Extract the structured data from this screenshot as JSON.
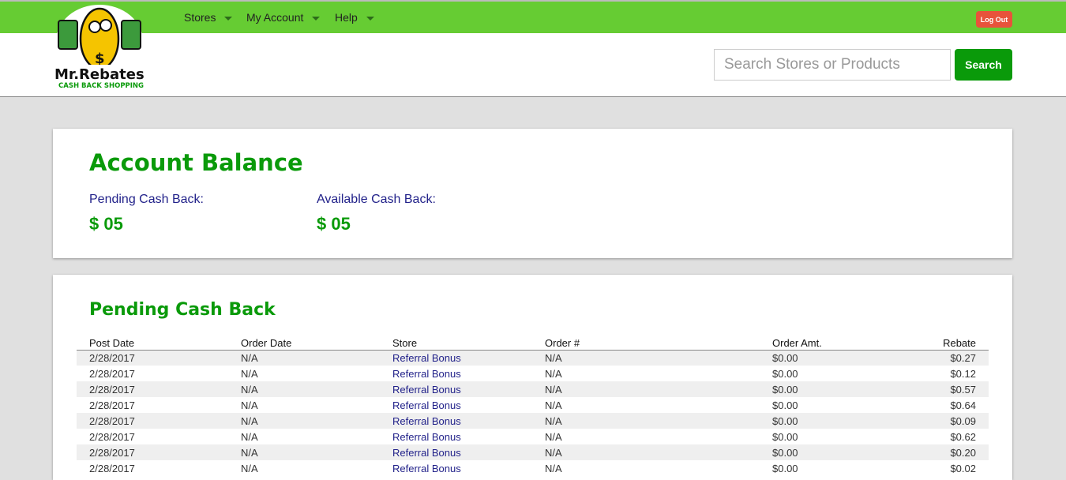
{
  "brand": {
    "name": "Mr.Rebates",
    "tagline": "CASH BACK SHOPPING"
  },
  "nav": [
    {
      "label": "Stores"
    },
    {
      "label": "My Account"
    },
    {
      "label": "Help"
    }
  ],
  "logout_label": "Log Out",
  "search": {
    "placeholder": "Search Stores or Products",
    "button": "Search"
  },
  "balance": {
    "title": "Account Balance",
    "pending_label": "Pending Cash Back:",
    "pending_value": "$ 05",
    "available_label": "Available Cash Back:",
    "available_value": "$ 05"
  },
  "pending": {
    "title": "Pending Cash Back",
    "columns": [
      "Post Date",
      "Order Date",
      "Store",
      "Order #",
      "Order Amt.",
      "Rebate"
    ],
    "rows": [
      [
        "2/28/2017",
        "N/A",
        "Referral Bonus",
        "N/A",
        "$0.00",
        "$0.27"
      ],
      [
        "2/28/2017",
        "N/A",
        "Referral Bonus",
        "N/A",
        "$0.00",
        "$0.12"
      ],
      [
        "2/28/2017",
        "N/A",
        "Referral Bonus",
        "N/A",
        "$0.00",
        "$0.57"
      ],
      [
        "2/28/2017",
        "N/A",
        "Referral Bonus",
        "N/A",
        "$0.00",
        "$0.64"
      ],
      [
        "2/28/2017",
        "N/A",
        "Referral Bonus",
        "N/A",
        "$0.00",
        "$0.09"
      ],
      [
        "2/28/2017",
        "N/A",
        "Referral Bonus",
        "N/A",
        "$0.00",
        "$0.62"
      ],
      [
        "2/28/2017",
        "N/A",
        "Referral Bonus",
        "N/A",
        "$0.00",
        "$0.20"
      ],
      [
        "2/28/2017",
        "N/A",
        "Referral Bonus",
        "N/A",
        "$0.00",
        "$0.02"
      ]
    ]
  },
  "colors": {
    "nav_green": "#66cc33",
    "brand_green": "#0a9a0a",
    "link_blue": "#22228a",
    "logout_red": "#e8533b"
  }
}
